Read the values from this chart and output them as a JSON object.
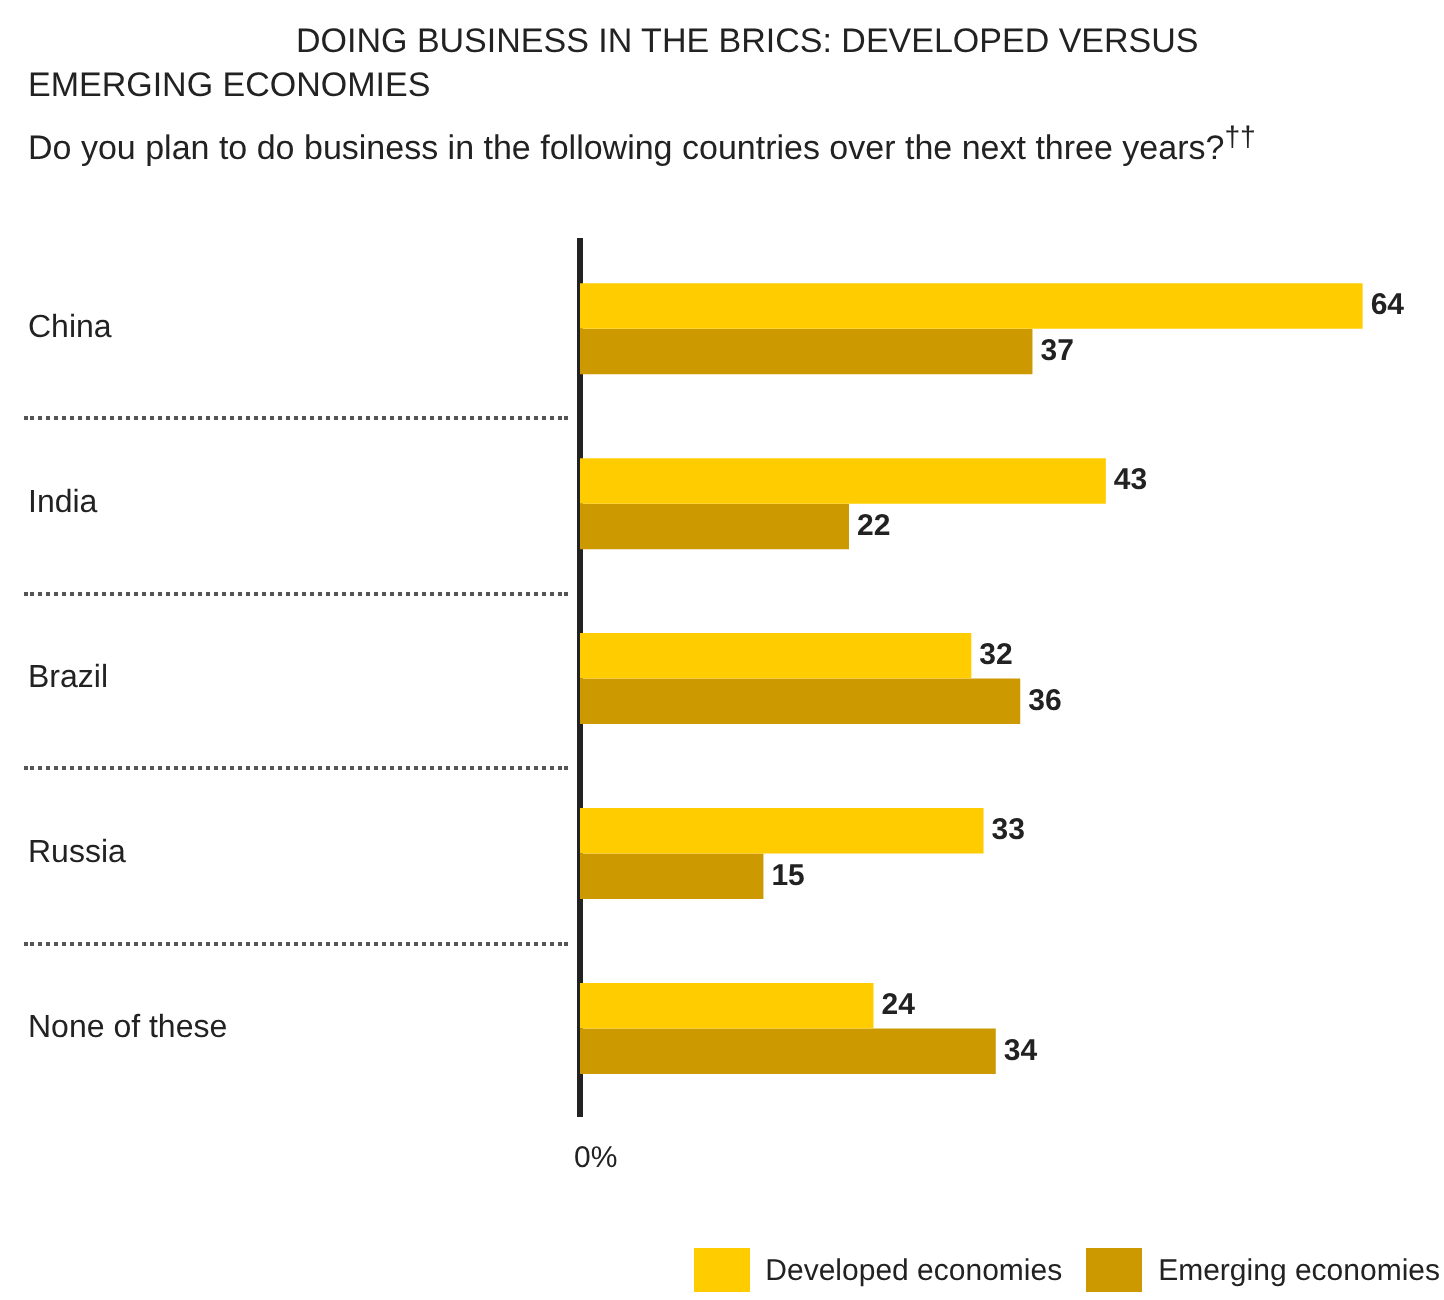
{
  "chart_data": {
    "type": "bar",
    "orientation": "horizontal",
    "title": "DOING BUSINESS IN THE BRICS: DEVELOPED VERSUS EMERGING ECONOMIES",
    "subtitle": "Do you plan to do business in the following countries over the next three years?$^{††}$",
    "categories": [
      "China",
      "India",
      "Brazil",
      "Russia",
      "None of these"
    ],
    "series": [
      {
        "name": "Developed economies",
        "color": "#ffcc00",
        "values": [
          64,
          43,
          32,
          33,
          24
        ]
      },
      {
        "name": "Emerging economies",
        "color": "#cc9900",
        "values": [
          37,
          22,
          36,
          15,
          34
        ]
      }
    ],
    "annotations": [
      "0%"
    ],
    "data_labels": true,
    "legend": "bottom right"
  }
}
